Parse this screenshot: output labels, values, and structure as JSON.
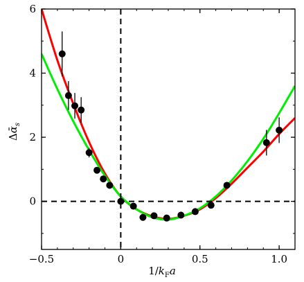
{
  "chart_data": {
    "type": "scatter",
    "xlabel": "1/k_F a",
    "ylabel": "Δᾱ_s",
    "xlim": [
      -0.5,
      1.1
    ],
    "ylim": [
      -1.5,
      6
    ],
    "xticks": [
      {
        "value": -0.5,
        "label": "−0.5"
      },
      {
        "value": 0,
        "label": "0"
      },
      {
        "value": 0.5,
        "label": "0.5"
      },
      {
        "value": 1.0,
        "label": "1.0"
      }
    ],
    "yticks": [
      {
        "value": 0,
        "label": "0"
      },
      {
        "value": 2,
        "label": "2"
      },
      {
        "value": 4,
        "label": "4"
      },
      {
        "value": 6,
        "label": "6"
      }
    ],
    "reference_lines": {
      "x0_dashed": 0,
      "y0_dashed": 0
    },
    "series": [
      {
        "kind": "points",
        "color": "#000000",
        "points": [
          {
            "x": -0.37,
            "y": 4.6,
            "err": 0.7
          },
          {
            "x": -0.33,
            "y": 3.3,
            "err": 0.45
          },
          {
            "x": -0.29,
            "y": 2.98,
            "err": 0.4
          },
          {
            "x": -0.25,
            "y": 2.85,
            "err": 0.4
          },
          {
            "x": -0.2,
            "y": 1.52,
            "err": 0.15
          },
          {
            "x": -0.15,
            "y": 0.97,
            "err": 0.1
          },
          {
            "x": -0.11,
            "y": 0.7,
            "err": 0.1
          },
          {
            "x": -0.07,
            "y": 0.5,
            "err": 0.08
          },
          {
            "x": 0.0,
            "y": 0.0,
            "err": 0.05
          },
          {
            "x": 0.08,
            "y": -0.15,
            "err": 0.05
          },
          {
            "x": 0.14,
            "y": -0.5,
            "err": 0.05
          },
          {
            "x": 0.21,
            "y": -0.45,
            "err": 0.05
          },
          {
            "x": 0.29,
            "y": -0.52,
            "err": 0.05
          },
          {
            "x": 0.38,
            "y": -0.43,
            "err": 0.05
          },
          {
            "x": 0.47,
            "y": -0.32,
            "err": 0.05
          },
          {
            "x": 0.57,
            "y": -0.12,
            "err": 0.05
          },
          {
            "x": 0.67,
            "y": 0.5,
            "err": 0.1
          },
          {
            "x": 0.92,
            "y": 1.83,
            "err": 0.4
          },
          {
            "x": 1.0,
            "y": 2.22,
            "err": 0.4
          }
        ]
      },
      {
        "kind": "curve",
        "color": "#ff0000",
        "points": [
          {
            "x": -0.5,
            "y": 6.0
          },
          {
            "x": -0.4,
            "y": 4.4
          },
          {
            "x": -0.3,
            "y": 3.05
          },
          {
            "x": -0.2,
            "y": 1.85
          },
          {
            "x": -0.1,
            "y": 0.87
          },
          {
            "x": 0.0,
            "y": 0.15
          },
          {
            "x": 0.1,
            "y": -0.25
          },
          {
            "x": 0.2,
            "y": -0.47
          },
          {
            "x": 0.3,
            "y": -0.55
          },
          {
            "x": 0.4,
            "y": -0.45
          },
          {
            "x": 0.5,
            "y": -0.25
          },
          {
            "x": 0.6,
            "y": 0.1
          },
          {
            "x": 0.7,
            "y": 0.55
          },
          {
            "x": 0.8,
            "y": 1.05
          },
          {
            "x": 0.9,
            "y": 1.55
          },
          {
            "x": 1.0,
            "y": 2.1
          },
          {
            "x": 1.1,
            "y": 2.6
          }
        ]
      },
      {
        "kind": "curve",
        "color": "#00ee00",
        "points": [
          {
            "x": -0.5,
            "y": 4.6
          },
          {
            "x": -0.4,
            "y": 3.5
          },
          {
            "x": -0.3,
            "y": 2.5
          },
          {
            "x": -0.2,
            "y": 1.6
          },
          {
            "x": -0.1,
            "y": 0.8
          },
          {
            "x": 0.0,
            "y": 0.15
          },
          {
            "x": 0.1,
            "y": -0.25
          },
          {
            "x": 0.2,
            "y": -0.5
          },
          {
            "x": 0.3,
            "y": -0.57
          },
          {
            "x": 0.4,
            "y": -0.45
          },
          {
            "x": 0.5,
            "y": -0.22
          },
          {
            "x": 0.6,
            "y": 0.15
          },
          {
            "x": 0.7,
            "y": 0.65
          },
          {
            "x": 0.8,
            "y": 1.25
          },
          {
            "x": 0.9,
            "y": 1.95
          },
          {
            "x": 1.0,
            "y": 2.75
          },
          {
            "x": 1.1,
            "y": 3.6
          }
        ]
      }
    ]
  }
}
